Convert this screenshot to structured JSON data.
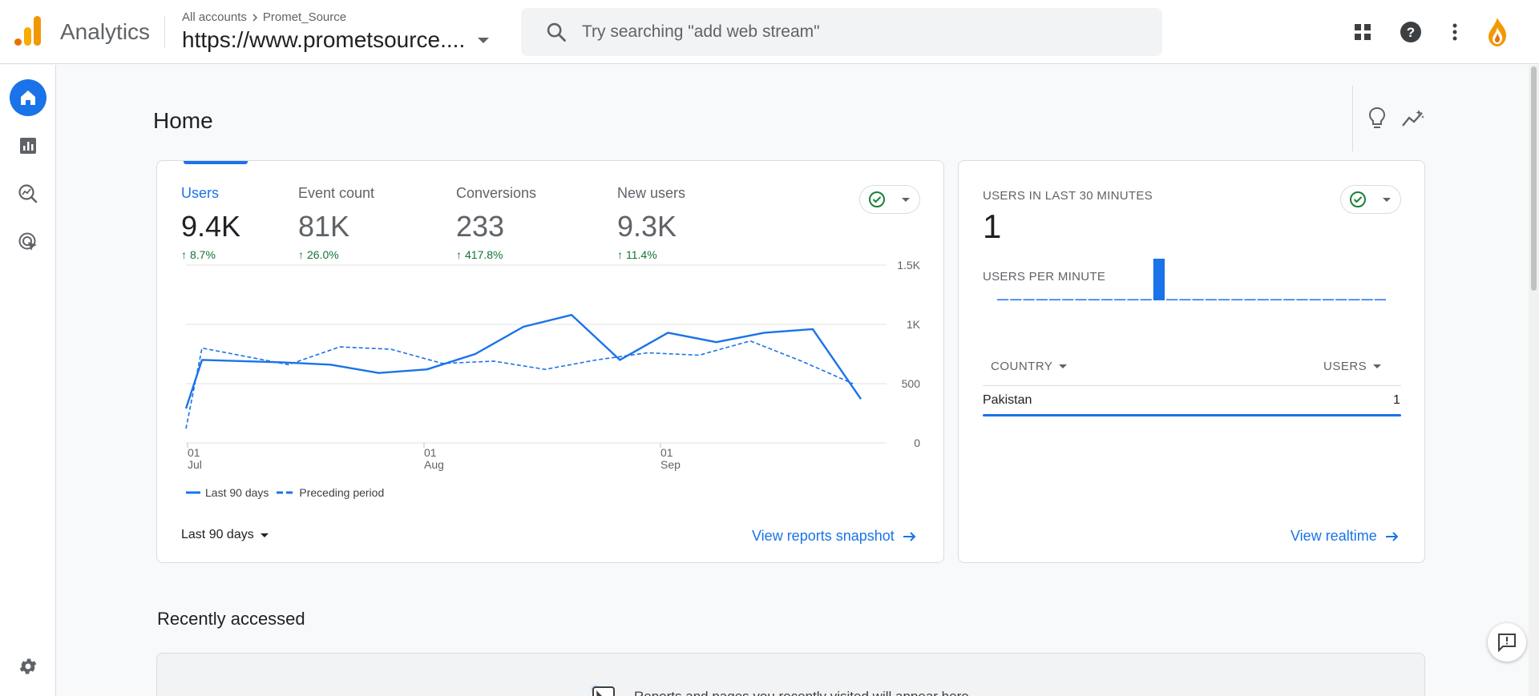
{
  "header": {
    "app_name": "Analytics",
    "breadcrumb_accounts": "All accounts",
    "breadcrumb_account": "Promet_Source",
    "property_name": "https://www.prometsource....",
    "search_placeholder": "Try searching \"add web stream\""
  },
  "page": {
    "title": "Home"
  },
  "overview": {
    "metrics": [
      {
        "label": "Users",
        "value": "9.4K",
        "change": "8.7%"
      },
      {
        "label": "Event count",
        "value": "81K",
        "change": "26.0%"
      },
      {
        "label": "Conversions",
        "value": "233",
        "change": "417.8%"
      },
      {
        "label": "New users",
        "value": "9.3K",
        "change": "11.4%"
      }
    ],
    "legend": {
      "current": "Last 90 days",
      "previous": "Preceding period"
    },
    "date_range": "Last 90 days",
    "link": "View reports snapshot"
  },
  "realtime": {
    "title": "USERS IN LAST 30 MINUTES",
    "value": "1",
    "subtitle": "USERS PER MINUTE",
    "col_country": "COUNTRY",
    "col_users": "USERS",
    "rows": [
      {
        "country": "Pakistan",
        "users": "1"
      }
    ],
    "link": "View realtime",
    "per_minute": [
      0,
      0,
      0,
      0,
      0,
      0,
      0,
      0,
      0,
      0,
      0,
      0,
      1,
      0,
      0,
      0,
      0,
      0,
      0,
      0,
      0,
      0,
      0,
      0,
      0,
      0,
      0,
      0,
      0,
      0
    ]
  },
  "recent": {
    "title": "Recently accessed",
    "empty_text": "Reports and pages you recently visited will appear here"
  },
  "chart_data": {
    "type": "line",
    "x_tick_labels": [
      [
        "01",
        "Jul"
      ],
      [
        "01",
        "Aug"
      ],
      [
        "01",
        "Sep"
      ]
    ],
    "y_tick_labels": [
      "0",
      "500",
      "1K",
      "1.5K"
    ],
    "ylim": [
      0,
      1500
    ],
    "series": [
      {
        "name": "Last 90 days",
        "style": "solid",
        "values": [
          290,
          700,
          680,
          660,
          590,
          620,
          750,
          980,
          1080,
          700,
          930,
          850,
          930,
          960,
          370
        ]
      },
      {
        "name": "Preceding period",
        "style": "dashed",
        "values": [
          120,
          800,
          660,
          810,
          790,
          670,
          690,
          620,
          700,
          760,
          740,
          860,
          690,
          500
        ]
      }
    ],
    "colors": {
      "line": "#1a73e8",
      "grid": "#e0e0e0",
      "label": "#5f6368"
    }
  }
}
